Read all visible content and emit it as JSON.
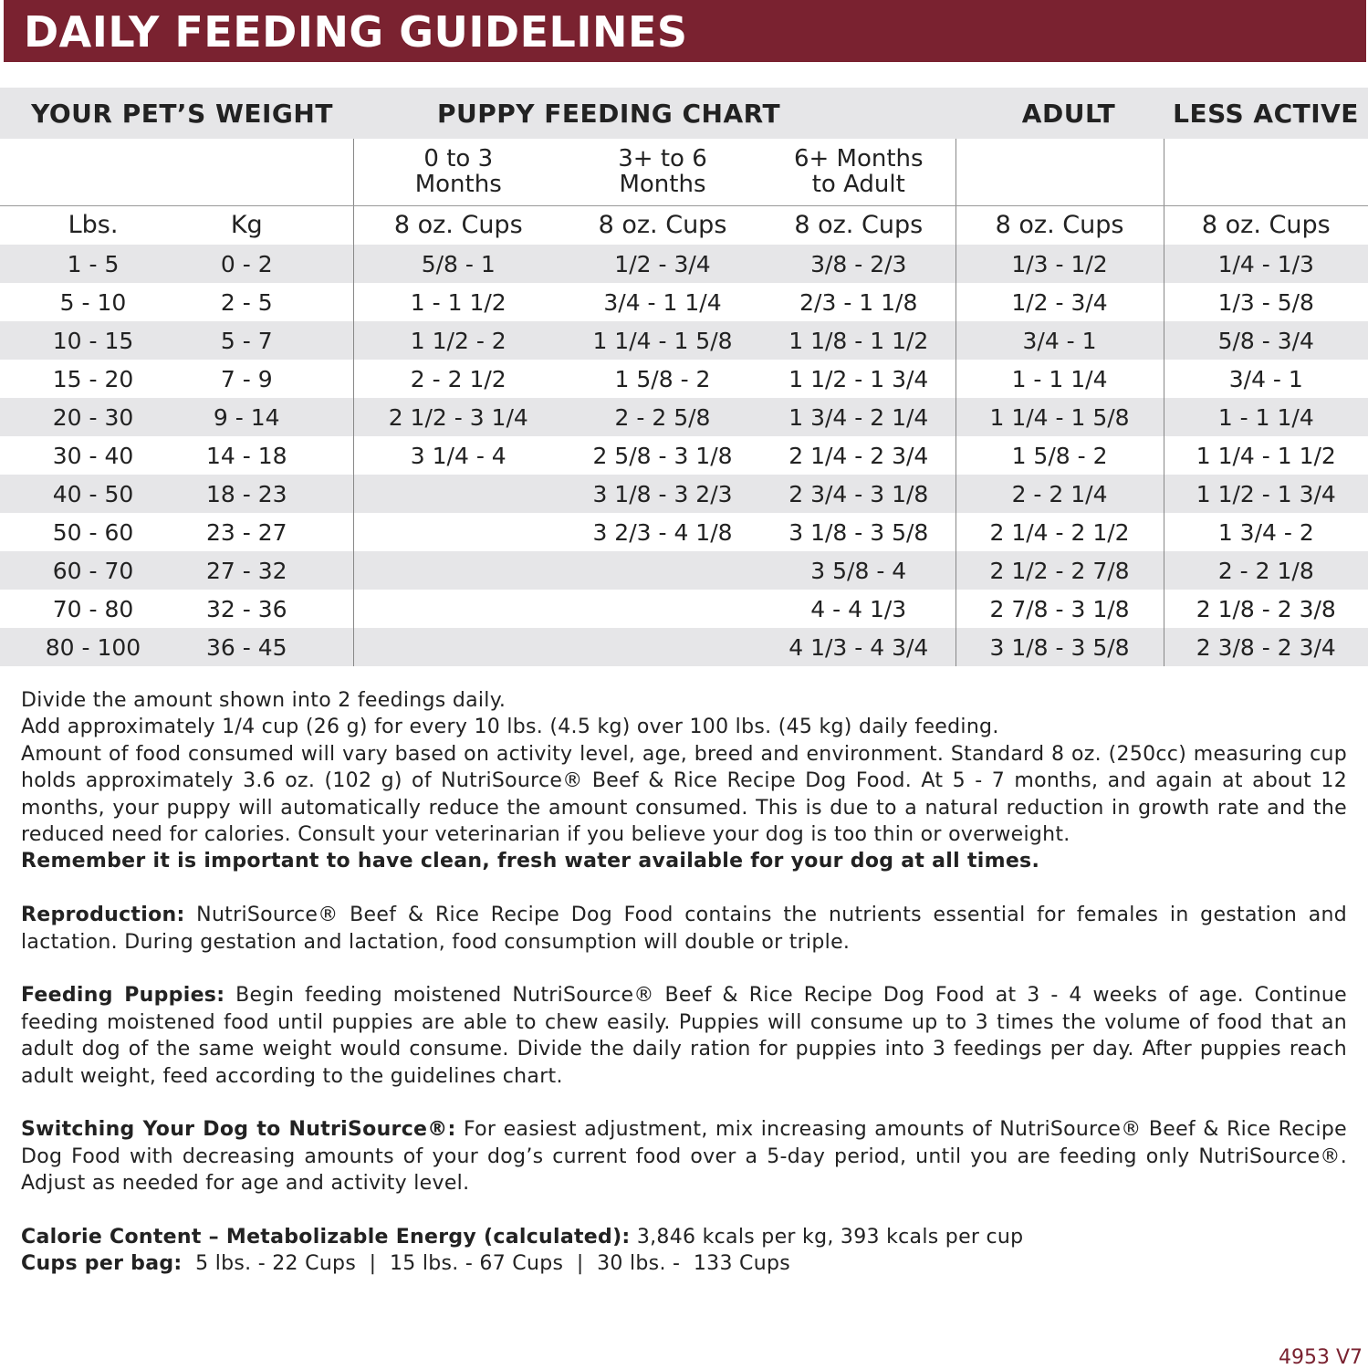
{
  "title": "DAILY FEEDING GUIDELINES",
  "table": {
    "headers": {
      "weight": "YOUR PET’S WEIGHT",
      "puppy": "PUPPY FEEDING CHART",
      "adult": "ADULT",
      "less_active": "LESS ACTIVE"
    },
    "puppy_ages": [
      "0 to 3\nMonths",
      "3+ to 6\nMonths",
      "6+ Months\nto Adult"
    ],
    "units": [
      "Lbs.",
      "Kg",
      "8 oz. Cups",
      "8 oz. Cups",
      "8 oz. Cups",
      "8 oz. Cups",
      "8 oz. Cups"
    ],
    "rows": [
      [
        "1 - 5",
        "0 - 2",
        "5/8 - 1",
        "1/2 - 3/4",
        "3/8 - 2/3",
        "1/3 - 1/2",
        "1/4 - 1/3"
      ],
      [
        "5 - 10",
        "2 - 5",
        "1 - 1 1/2",
        "3/4 - 1 1/4",
        "2/3 - 1 1/8",
        "1/2 - 3/4",
        "1/3 - 5/8"
      ],
      [
        "10 - 15",
        "5 - 7",
        "1 1/2 - 2",
        "1 1/4 - 1 5/8",
        "1 1/8 - 1 1/2",
        "3/4 - 1",
        "5/8 - 3/4"
      ],
      [
        "15 - 20",
        "7 - 9",
        "2 - 2 1/2",
        "1 5/8 - 2",
        "1 1/2 - 1 3/4",
        "1 - 1 1/4",
        "3/4 - 1"
      ],
      [
        "20 - 30",
        "9 - 14",
        "2 1/2 - 3 1/4",
        "2 - 2 5/8",
        "1 3/4 - 2 1/4",
        "1 1/4 - 1 5/8",
        "1 - 1 1/4"
      ],
      [
        "30 - 40",
        "14 - 18",
        "3 1/4 - 4",
        "2 5/8 - 3 1/8",
        "2 1/4 - 2 3/4",
        "1 5/8 - 2",
        "1 1/4 - 1 1/2"
      ],
      [
        "40 - 50",
        "18 - 23",
        "",
        "3 1/8 - 3 2/3",
        "2 3/4 - 3 1/8",
        "2 - 2 1/4",
        "1 1/2 - 1 3/4"
      ],
      [
        "50 - 60",
        "23 - 27",
        "",
        "3 2/3 - 4 1/8",
        "3 1/8 - 3 5/8",
        "2 1/4 - 2 1/2",
        "1 3/4 - 2"
      ],
      [
        "60 - 70",
        "27 - 32",
        "",
        "",
        "3 5/8 - 4",
        "2 1/2 - 2 7/8",
        "2 - 2 1/8"
      ],
      [
        "70 - 80",
        "32 - 36",
        "",
        "",
        "4 - 4 1/3",
        "2 7/8 - 3 1/8",
        "2 1/8 - 2 3/8"
      ],
      [
        "80 - 100",
        "36 - 45",
        "",
        "",
        "4 1/3 - 4 3/4",
        "3 1/8 - 3 5/8",
        "2 3/8 - 2 3/4"
      ]
    ]
  },
  "notes": {
    "p1": "Divide the amount shown into 2 feedings daily.",
    "p2": "Add approximately 1/4 cup (26 g) for every 10 lbs. (4.5 kg) over 100 lbs. (45 kg) daily feeding.",
    "p3": "Amount of food consumed will vary based on activity level, age, breed and environment. Standard 8 oz. (250cc) measuring cup holds approximately 3.6 oz. (102 g)  of NutriSource® Beef & Rice Recipe Dog Food. At 5 - 7 months, and again at about 12 months, your puppy will automatically reduce the amount consumed. This is due to a natural reduction in growth rate and the reduced need for calories. Consult your veterinarian if you believe your dog is too thin or overweight.",
    "water": "Remember it is important to have clean, fresh water available for your dog at all times.",
    "reproduction_label": "Reproduction:",
    "reproduction": " NutriSource® Beef & Rice Recipe Dog Food contains the nutrients essential for females in gestation and lactation. During gestation and lactation, food consumption will double or triple.",
    "puppies_label": "Feeding Puppies:",
    "puppies": " Begin feeding moistened NutriSource® Beef & Rice Recipe Dog Food at 3 - 4 weeks of age. Continue feeding moistened food until puppies are able to chew easily. Puppies will consume up to 3 times the volume of food that an adult dog of the same weight would consume. Divide the daily ration for puppies into 3 feedings per day. After puppies reach adult weight, feed according to the guidelines chart.",
    "switching_label": "Switching Your Dog to NutriSource®:",
    "switching": " For easiest adjustment, mix increasing amounts of NutriSource® Beef & Rice Recipe Dog Food with decreasing amounts of your dog’s current food over a 5-day period, until you are feeding only NutriSource®. Adjust as needed for age and activity level.",
    "calorie_label": "Calorie Content – Metabolizable Energy (calculated):",
    "calorie": " 3,846 kcals per kg, 393 kcals per cup",
    "cups_label": "Cups per bag:",
    "cups": "  5 lbs. - 22 Cups  |  15 lbs. - 67 Cups  |  30 lbs. -  133 Cups"
  },
  "code": "4953 V7",
  "colors": {
    "brand": "#7a2230",
    "row_shade": "#e6e6e8"
  }
}
